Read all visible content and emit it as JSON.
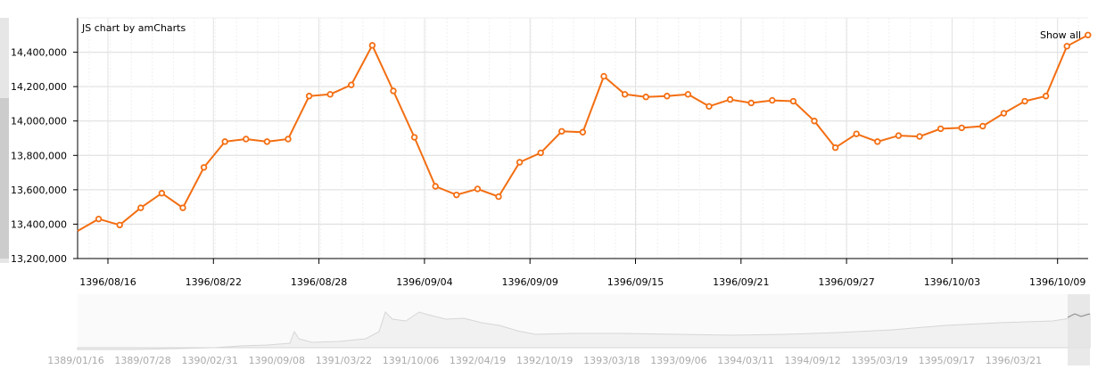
{
  "chart_data": {
    "type": "line",
    "title": "",
    "xlabel": "",
    "ylabel": "",
    "credit": "JS chart by amCharts",
    "show_all_label": "Show all",
    "ylim": [
      13200000,
      14600000
    ],
    "y_ticks": [
      13200000,
      13400000,
      13600000,
      13800000,
      14000000,
      14200000,
      14400000
    ],
    "x_tick_labels": [
      "1396/08/16",
      "1396/08/22",
      "1396/08/28",
      "1396/09/04",
      "1396/09/09",
      "1396/09/15",
      "1396/09/21",
      "1396/09/27",
      "1396/10/03",
      "1396/10/09"
    ],
    "series": [
      {
        "color": "#f36e12",
        "values": [
          13360000,
          13430000,
          13395000,
          13495000,
          13580000,
          13495000,
          13730000,
          13880000,
          13895000,
          13880000,
          13895000,
          14145000,
          14155000,
          14210000,
          14440000,
          14175000,
          13905000,
          13620000,
          13570000,
          13605000,
          13560000,
          13760000,
          13815000,
          13940000,
          13935000,
          14260000,
          14155000,
          14140000,
          14145000,
          14155000,
          14085000,
          14125000,
          14105000,
          14120000,
          14115000,
          14000000,
          13845000,
          13925000,
          13880000,
          13915000,
          13910000,
          13955000,
          13960000,
          13970000,
          14045000,
          14115000,
          14145000,
          14435000,
          14500000
        ]
      }
    ],
    "grid": true,
    "scrollbar": {
      "tick_labels": [
        "1389/01/16",
        "1389/07/28",
        "1390/02/31",
        "1390/09/08",
        "1391/03/22",
        "1391/10/06",
        "1392/04/19",
        "1392/10/19",
        "1393/03/18",
        "1393/09/06",
        "1394/03/11",
        "1394/09/12",
        "1395/03/19",
        "1395/09/17",
        "1396/03/21"
      ]
    }
  }
}
